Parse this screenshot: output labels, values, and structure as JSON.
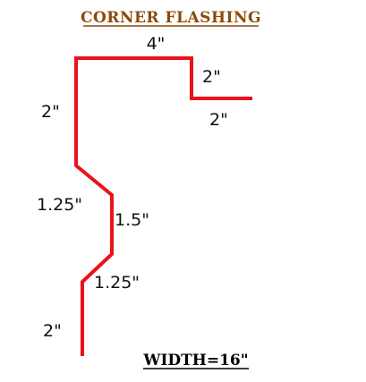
{
  "title": "CORNER  FLASHING",
  "width_label": "WIDTH=16\"",
  "colors": {
    "profile": "#e8131b",
    "title": "#8B4A0B",
    "text": "#111111"
  },
  "segments": [
    {
      "id": "top",
      "label": "4\""
    },
    {
      "id": "right-drop",
      "label": "2\""
    },
    {
      "id": "right-leg",
      "label": "2\""
    },
    {
      "id": "upper-vertical",
      "label": "2\""
    },
    {
      "id": "upper-diagonal",
      "label": "1.25\""
    },
    {
      "id": "middle-vertical",
      "label": "1.5\""
    },
    {
      "id": "lower-diagonal",
      "label": "1.25\""
    },
    {
      "id": "bottom-vertical",
      "label": "2\""
    }
  ]
}
